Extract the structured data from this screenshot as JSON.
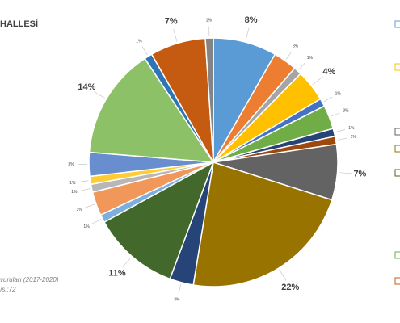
{
  "chart_data": {
    "type": "pie",
    "title": "HALLESİ",
    "footnotes": [
      "vuruları (2017-2020)",
      "ısı:72"
    ],
    "values": [
      8,
      3,
      1,
      4,
      1,
      3,
      1,
      1,
      7,
      22,
      3,
      11,
      1,
      3,
      1,
      1,
      3,
      14,
      1,
      7,
      1
    ],
    "value_labels": [
      "8%",
      "3%",
      "1%",
      "4%",
      "1%",
      "3%",
      "1%",
      "1%",
      "7%",
      "22%",
      "3%",
      "11%",
      "1%",
      "3%",
      "1%",
      "1%",
      "3%",
      "14%",
      "1%",
      "7%",
      "1%"
    ],
    "colors": [
      "#5b9bd5",
      "#ed7d31",
      "#a5a5a5",
      "#ffc000",
      "#4472c4",
      "#70ad47",
      "#264478",
      "#9e480e",
      "#636363",
      "#997300",
      "#264478",
      "#43682b",
      "#7cafdd",
      "#f1975a",
      "#b7b7b7",
      "#ffcd33",
      "#698ed0",
      "#8cc168",
      "#2e75b6",
      "#c55a11",
      "#848484"
    ]
  }
}
